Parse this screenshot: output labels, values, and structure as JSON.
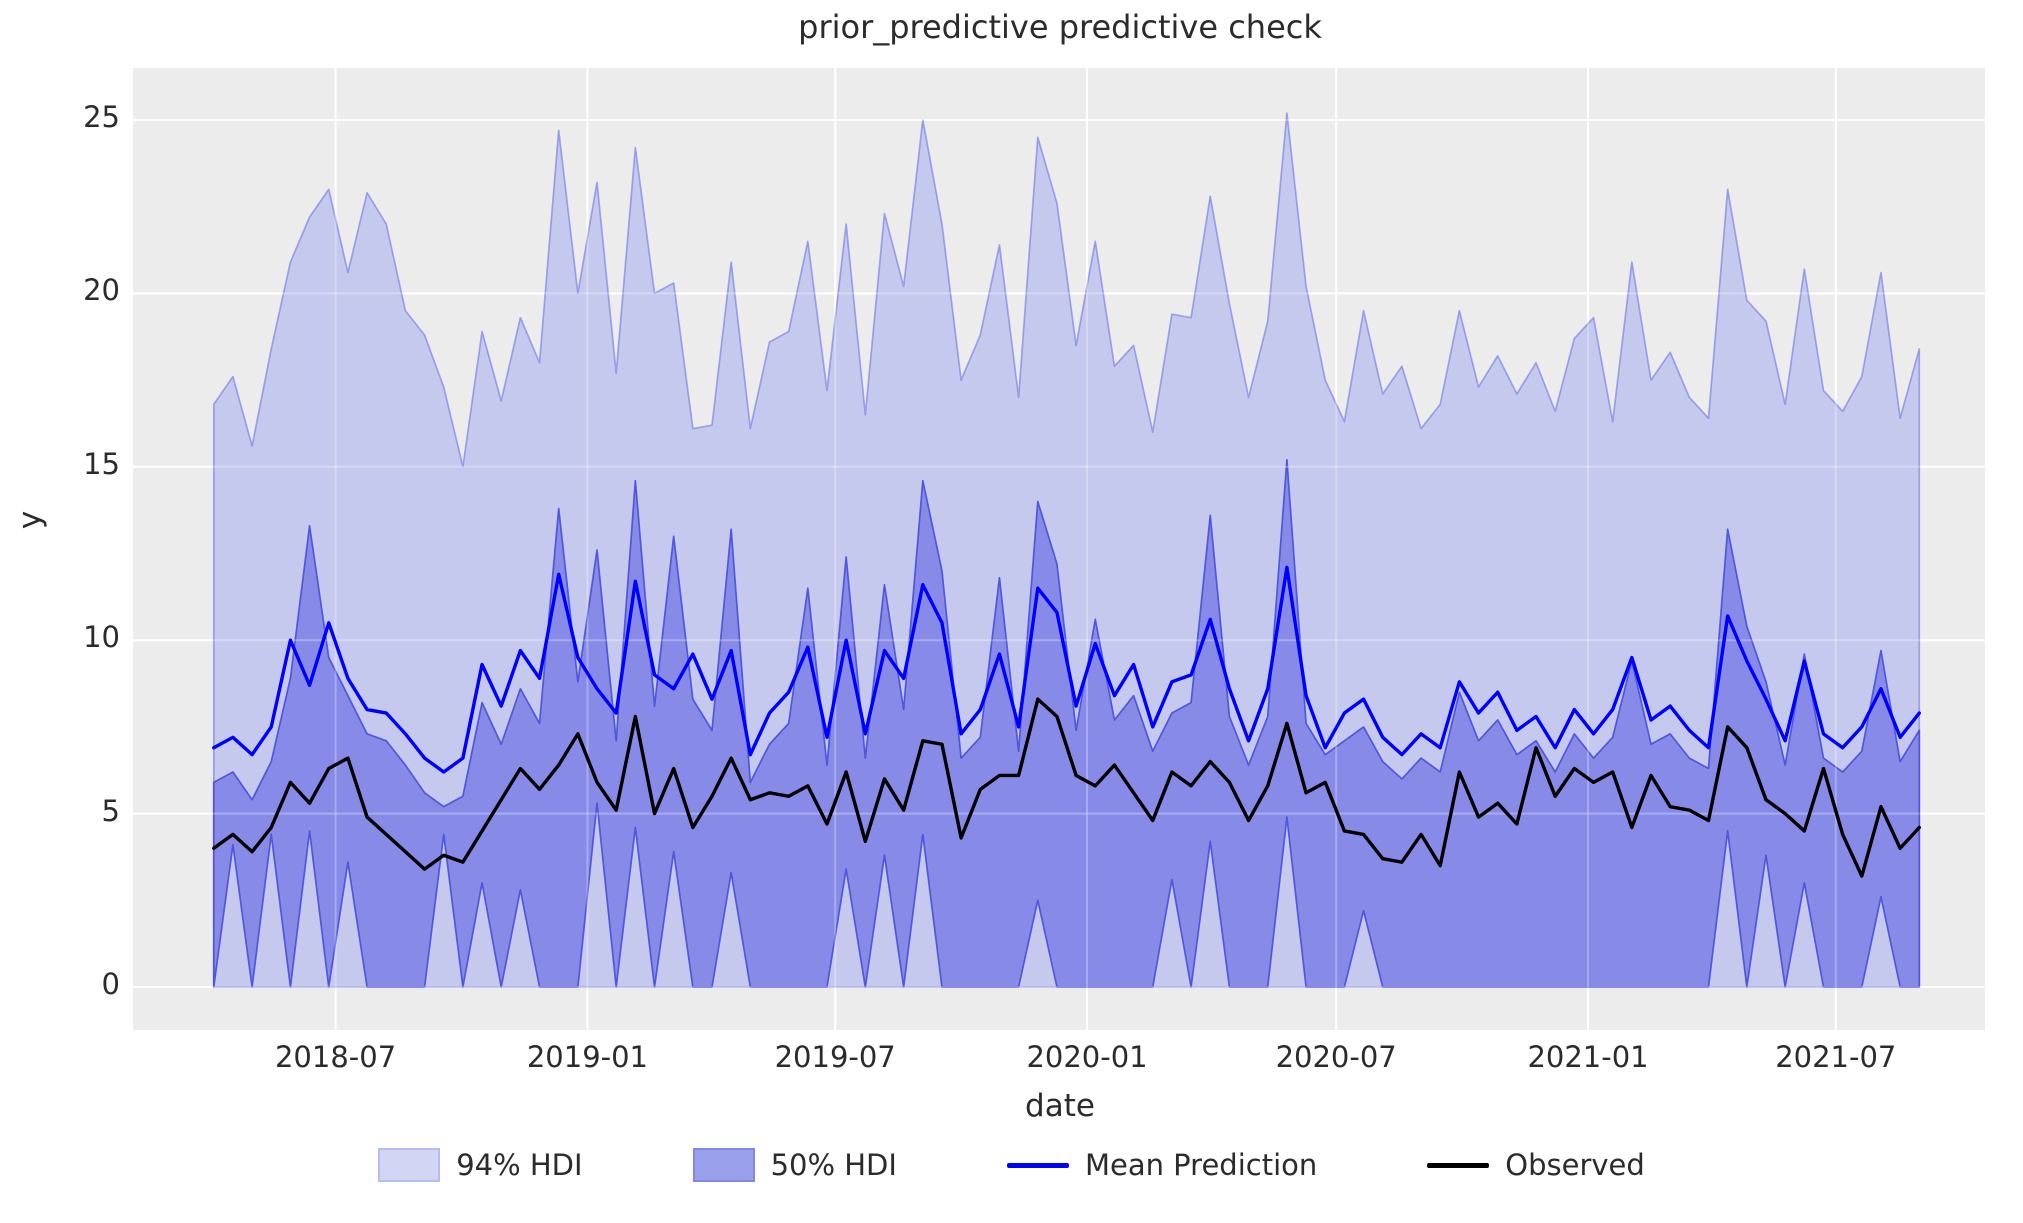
{
  "title": "prior_predictive predictive check",
  "axes": {
    "x_label": "date",
    "y_label": "y",
    "y_ticks": [
      0,
      5,
      10,
      15,
      20,
      25
    ],
    "x_ticks": [
      {
        "label": "2018-07",
        "date": "2018-07-01"
      },
      {
        "label": "2019-01",
        "date": "2019-01-01"
      },
      {
        "label": "2019-07",
        "date": "2019-07-01"
      },
      {
        "label": "2020-01",
        "date": "2020-01-01"
      },
      {
        "label": "2020-07",
        "date": "2020-07-01"
      },
      {
        "label": "2021-01",
        "date": "2021-01-01"
      },
      {
        "label": "2021-07",
        "date": "2021-07-01"
      }
    ]
  },
  "legend": {
    "items": [
      {
        "label": "94% HDI",
        "swatch": "patch",
        "fill": "#d3d5f4",
        "edge": "#b7bcf0"
      },
      {
        "label": "50% HDI",
        "swatch": "patch",
        "fill": "#9ba0ec",
        "edge": "#8187e6"
      },
      {
        "label": "Mean Prediction",
        "swatch": "line",
        "color": "#0000ff"
      },
      {
        "label": "Observed",
        "swatch": "line",
        "color": "#000000"
      }
    ]
  },
  "colors": {
    "figure_bg": "#ffffff",
    "plot_bg": "#ececec",
    "grid": "#ffffff",
    "hdi94_fill": "#c6c9ee",
    "hdi94_edge": "rgba(118,125,226,0.65)",
    "hdi50_fill": "#878be7",
    "hdi50_edge": "rgba(72,78,216,0.9)",
    "mean_line": "#0000ff",
    "observed_line": "#000000",
    "text": "#262626"
  },
  "chart_data": {
    "type": "area",
    "title": "prior_predictive predictive check",
    "xlabel": "date",
    "ylabel": "y",
    "grid": true,
    "legend_position": "bottom",
    "ylim": [
      -1.24,
      26.5
    ],
    "xlim_dates": [
      "2018-02-03",
      "2021-10-18"
    ],
    "y_ticks": [
      0,
      5,
      10,
      15,
      20,
      25
    ],
    "dates": [
      "2018-04-03",
      "2018-04-17",
      "2018-05-01",
      "2018-05-15",
      "2018-05-29",
      "2018-06-12",
      "2018-06-26",
      "2018-07-10",
      "2018-07-24",
      "2018-08-07",
      "2018-08-21",
      "2018-09-04",
      "2018-09-18",
      "2018-10-02",
      "2018-10-16",
      "2018-10-30",
      "2018-11-13",
      "2018-11-27",
      "2018-12-11",
      "2018-12-25",
      "2019-01-08",
      "2019-01-22",
      "2019-02-05",
      "2019-02-19",
      "2019-03-05",
      "2019-03-19",
      "2019-04-02",
      "2019-04-16",
      "2019-04-30",
      "2019-05-14",
      "2019-05-28",
      "2019-06-11",
      "2019-06-25",
      "2019-07-09",
      "2019-07-23",
      "2019-08-06",
      "2019-08-20",
      "2019-09-03",
      "2019-09-17",
      "2019-10-01",
      "2019-10-15",
      "2019-10-29",
      "2019-11-12",
      "2019-11-26",
      "2019-12-10",
      "2019-12-24",
      "2020-01-07",
      "2020-01-21",
      "2020-02-04",
      "2020-02-18",
      "2020-03-03",
      "2020-03-17",
      "2020-03-31",
      "2020-04-14",
      "2020-04-28",
      "2020-05-12",
      "2020-05-26",
      "2020-06-09",
      "2020-06-23",
      "2020-07-07",
      "2020-07-21",
      "2020-08-04",
      "2020-08-18",
      "2020-09-01",
      "2020-09-15",
      "2020-09-29",
      "2020-10-13",
      "2020-10-27",
      "2020-11-10",
      "2020-11-24",
      "2020-12-08",
      "2020-12-22",
      "2021-01-05",
      "2021-01-19",
      "2021-02-02",
      "2021-02-16",
      "2021-03-02",
      "2021-03-16",
      "2021-03-30",
      "2021-04-13",
      "2021-04-27",
      "2021-05-11",
      "2021-05-25",
      "2021-06-08",
      "2021-06-22",
      "2021-07-06",
      "2021-07-20",
      "2021-08-03",
      "2021-08-17",
      "2021-08-31"
    ],
    "series": [
      {
        "name": "94% HDI upper",
        "values": [
          16.8,
          17.6,
          15.6,
          18.4,
          20.9,
          22.2,
          23.0,
          20.6,
          22.9,
          22.0,
          19.5,
          18.8,
          17.3,
          15.0,
          18.9,
          16.9,
          19.3,
          18.0,
          24.7,
          20.0,
          23.2,
          17.7,
          24.2,
          20.0,
          20.3,
          16.1,
          16.2,
          20.9,
          16.1,
          18.6,
          18.9,
          21.5,
          17.2,
          22.0,
          16.5,
          22.3,
          20.2,
          25.0,
          22.0,
          17.5,
          18.8,
          21.4,
          17.0,
          24.5,
          22.6,
          18.5,
          21.5,
          17.9,
          18.5,
          16.0,
          19.4,
          19.3,
          22.8,
          19.7,
          17.0,
          19.2,
          25.2,
          20.2,
          17.5,
          16.3,
          19.5,
          17.1,
          17.9,
          16.1,
          16.8,
          19.5,
          17.3,
          18.2,
          17.1,
          18.0,
          16.6,
          18.7,
          19.3,
          16.3,
          20.9,
          17.5,
          18.3,
          17.0,
          16.4,
          23.0,
          19.8,
          19.2,
          16.8,
          20.7,
          17.2,
          16.6,
          17.6,
          20.6,
          16.4,
          18.4
        ]
      },
      {
        "name": "94% HDI lower",
        "constant": 0
      },
      {
        "name": "50% HDI upper",
        "values": [
          5.9,
          6.2,
          5.4,
          6.5,
          8.9,
          13.3,
          9.5,
          8.4,
          7.3,
          7.1,
          6.4,
          5.6,
          5.2,
          5.5,
          8.2,
          7.0,
          8.6,
          7.6,
          13.8,
          8.8,
          12.6,
          7.1,
          14.6,
          8.1,
          13.0,
          8.3,
          7.4,
          13.2,
          5.9,
          7.0,
          7.6,
          11.5,
          6.4,
          12.4,
          6.6,
          11.6,
          8.0,
          14.6,
          12.0,
          6.6,
          7.2,
          11.8,
          6.8,
          14.0,
          12.2,
          7.4,
          10.6,
          7.7,
          8.4,
          6.8,
          7.9,
          8.2,
          13.6,
          7.8,
          6.4,
          7.8,
          15.2,
          7.6,
          6.7,
          7.1,
          7.5,
          6.5,
          6.0,
          6.6,
          6.2,
          8.5,
          7.1,
          7.7,
          6.7,
          7.1,
          6.2,
          7.3,
          6.6,
          7.2,
          9.4,
          7.0,
          7.3,
          6.6,
          6.3,
          13.2,
          10.4,
          8.8,
          6.4,
          9.6,
          6.6,
          6.2,
          6.8,
          9.7,
          6.5,
          7.4
        ]
      },
      {
        "name": "50% HDI lower",
        "values": [
          0,
          4.1,
          0,
          4.4,
          0,
          4.5,
          0,
          3.6,
          0,
          0,
          0,
          0,
          4.4,
          0,
          3.0,
          0,
          2.8,
          0,
          0,
          0,
          5.3,
          0,
          4.6,
          0,
          3.9,
          0,
          0,
          3.3,
          0,
          0,
          0,
          0,
          0,
          3.4,
          0,
          3.8,
          0,
          4.4,
          0,
          0,
          0,
          0,
          0,
          2.5,
          0,
          0,
          0,
          0,
          0,
          0,
          3.1,
          0,
          4.2,
          0,
          0,
          0,
          4.9,
          0,
          0,
          0,
          2.2,
          0,
          0,
          0,
          0,
          0,
          0,
          0,
          0,
          0,
          0,
          0,
          0,
          0,
          0,
          0,
          0,
          0,
          0,
          4.5,
          0,
          3.8,
          0,
          3.0,
          0,
          0,
          0,
          2.6,
          0,
          0
        ]
      },
      {
        "name": "Mean Prediction",
        "values": [
          6.9,
          7.2,
          6.7,
          7.5,
          10.0,
          8.7,
          10.5,
          8.9,
          8.0,
          7.9,
          7.3,
          6.6,
          6.2,
          6.6,
          9.3,
          8.1,
          9.7,
          8.9,
          11.9,
          9.5,
          8.6,
          7.9,
          11.7,
          9.0,
          8.6,
          9.6,
          8.3,
          9.7,
          6.7,
          7.9,
          8.5,
          9.8,
          7.2,
          10.0,
          7.3,
          9.7,
          8.9,
          11.6,
          10.5,
          7.3,
          8.0,
          9.6,
          7.5,
          11.5,
          10.8,
          8.1,
          9.9,
          8.4,
          9.3,
          7.5,
          8.8,
          9.0,
          10.6,
          8.6,
          7.1,
          8.6,
          12.1,
          8.4,
          6.9,
          7.9,
          8.3,
          7.2,
          6.7,
          7.3,
          6.9,
          8.8,
          7.9,
          8.5,
          7.4,
          7.8,
          6.9,
          8.0,
          7.3,
          8.0,
          9.5,
          7.7,
          8.1,
          7.4,
          6.9,
          10.7,
          9.4,
          8.3,
          7.1,
          9.4,
          7.3,
          6.9,
          7.5,
          8.6,
          7.2,
          7.9
        ]
      },
      {
        "name": "Observed",
        "values": [
          4.0,
          4.4,
          3.9,
          4.6,
          5.9,
          5.3,
          6.3,
          6.6,
          4.9,
          4.4,
          3.9,
          3.4,
          3.8,
          3.6,
          4.5,
          5.4,
          6.3,
          5.7,
          6.4,
          7.3,
          5.9,
          5.1,
          7.8,
          5.0,
          6.3,
          4.6,
          5.5,
          6.6,
          5.4,
          5.6,
          5.5,
          5.8,
          4.7,
          6.2,
          4.2,
          6.0,
          5.1,
          7.1,
          7.0,
          4.3,
          5.7,
          6.1,
          6.1,
          8.3,
          7.8,
          6.1,
          5.8,
          6.4,
          5.6,
          4.8,
          6.2,
          5.8,
          6.5,
          5.9,
          4.8,
          5.8,
          7.6,
          5.6,
          5.9,
          4.5,
          4.4,
          3.7,
          3.6,
          4.4,
          3.5,
          6.2,
          4.9,
          5.3,
          4.7,
          6.9,
          5.5,
          6.3,
          5.9,
          6.2,
          4.6,
          6.1,
          5.2,
          5.1,
          4.8,
          7.5,
          6.9,
          5.4,
          5.0,
          4.5,
          6.3,
          4.4,
          3.2,
          5.2,
          4.0,
          4.6
        ]
      }
    ]
  }
}
